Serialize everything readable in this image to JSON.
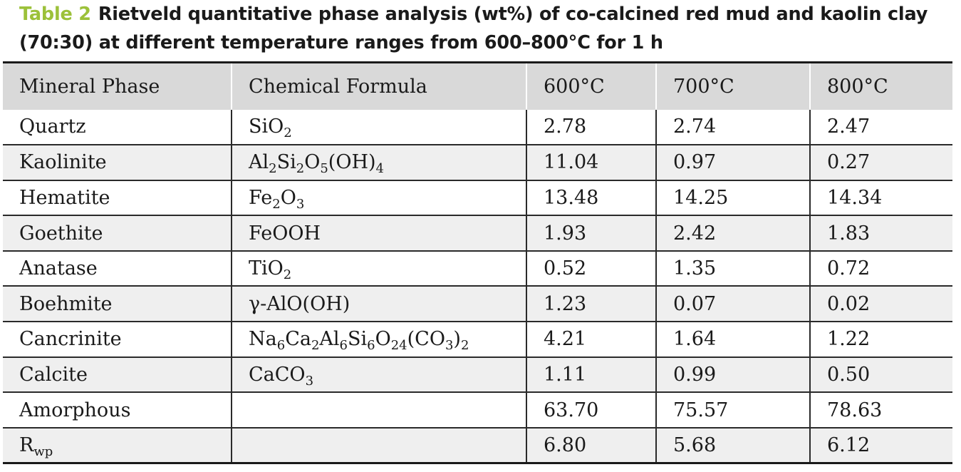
{
  "caption": {
    "label": "Table 2",
    "text": "Rietveld quantitative phase analysis (wt%) of co-calcined red mud and kaolin clay (70:30) at different temperature ranges from 600–800°C for 1 h"
  },
  "table": {
    "headers": [
      "Mineral Phase",
      "Chemical Formula",
      "600°C",
      "700°C",
      "800°C"
    ],
    "rows": [
      {
        "phase": "Quartz",
        "formula": [
          [
            "Si",
            ""
          ],
          [
            "O",
            "2"
          ]
        ],
        "v600": "2.78",
        "v700": "2.74",
        "v800": "2.47"
      },
      {
        "phase": "Kaolinite",
        "formula": [
          [
            "Al",
            "2"
          ],
          [
            "Si",
            "2"
          ],
          [
            "O",
            "5"
          ],
          [
            "(OH)",
            "4"
          ]
        ],
        "v600": "11.04",
        "v700": "0.97",
        "v800": "0.27"
      },
      {
        "phase": "Hematite",
        "formula": [
          [
            "Fe",
            "2"
          ],
          [
            "O",
            "3"
          ]
        ],
        "v600": "13.48",
        "v700": "14.25",
        "v800": "14.34"
      },
      {
        "phase": "Goethite",
        "formula": [
          [
            "FeOOH",
            ""
          ]
        ],
        "v600": "1.93",
        "v700": "2.42",
        "v800": "1.83"
      },
      {
        "phase": "Anatase",
        "formula": [
          [
            "Ti",
            ""
          ],
          [
            "O",
            "2"
          ]
        ],
        "v600": "0.52",
        "v700": "1.35",
        "v800": "0.72"
      },
      {
        "phase": "Boehmite",
        "formula": [
          [
            "γ-AlO(OH)",
            ""
          ]
        ],
        "v600": "1.23",
        "v700": "0.07",
        "v800": "0.02"
      },
      {
        "phase": "Cancrinite",
        "formula": [
          [
            "Na",
            "6"
          ],
          [
            "Ca",
            "2"
          ],
          [
            "Al",
            "6"
          ],
          [
            "Si",
            "6"
          ],
          [
            "O",
            "24"
          ],
          [
            "(CO",
            "3"
          ],
          [
            ")",
            "2"
          ]
        ],
        "v600": "4.21",
        "v700": "1.64",
        "v800": "1.22"
      },
      {
        "phase": "Calcite",
        "formula": [
          [
            "CaCO",
            "3"
          ]
        ],
        "v600": "1.11",
        "v700": "0.99",
        "v800": "0.50"
      },
      {
        "phase": "Amorphous",
        "formula": [],
        "v600": "63.70",
        "v700": "75.57",
        "v800": "78.63"
      },
      {
        "phase": [
          [
            "R",
            "wp"
          ]
        ],
        "formula": [],
        "v600": "6.80",
        "v700": "5.68",
        "v800": "6.12"
      }
    ]
  }
}
